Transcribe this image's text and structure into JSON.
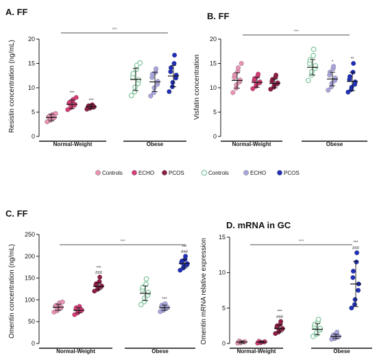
{
  "colors": {
    "controls_nw": "#e893b4",
    "echo_nw": "#d43b75",
    "pcos_nw": "#8e1c45",
    "controls_ob": "#7cc49a",
    "echo_ob": "#a9a6de",
    "pcos_ob": "#1f2fb8"
  },
  "legend": [
    {
      "label": "Controls",
      "color_key": "controls_nw",
      "hollow": false
    },
    {
      "label": "ECHO",
      "color_key": "echo_nw",
      "hollow": false
    },
    {
      "label": "PCOS",
      "color_key": "pcos_nw",
      "hollow": false
    },
    {
      "label": "Controls",
      "color_key": "controls_ob",
      "hollow": true
    },
    {
      "label": "ECHO",
      "color_key": "echo_ob",
      "hollow": false
    },
    {
      "label": "PCOS",
      "color_key": "pcos_ob",
      "hollow": false
    }
  ],
  "chart_data": [
    {
      "type": "scatter",
      "title": "A. FF",
      "ylabel": "Resistin concentration (ng/mL)",
      "ylim": [
        0,
        20
      ],
      "yticks": [
        0,
        5,
        10,
        15,
        20
      ],
      "groups": [
        "Normal-Weight",
        "Obese"
      ],
      "bracket": "°°°",
      "series": [
        {
          "color_key": "controls_nw",
          "mean": 3.9,
          "sd": 0.7,
          "sig": [],
          "points": [
            3.0,
            3.3,
            3.6,
            3.8,
            3.9,
            4.0,
            4.1,
            4.3,
            4.5,
            4.7
          ]
        },
        {
          "color_key": "echo_nw",
          "mean": 6.6,
          "sd": 0.9,
          "sig": [
            "***"
          ],
          "points": [
            5.5,
            5.9,
            6.2,
            6.4,
            6.6,
            6.8,
            7.0,
            7.3,
            7.6,
            8.0
          ]
        },
        {
          "color_key": "pcos_nw",
          "mean": 6.1,
          "sd": 0.4,
          "sig": [
            "***"
          ],
          "points": [
            5.6,
            5.8,
            5.9,
            6.0,
            6.1,
            6.2,
            6.3,
            6.4,
            6.5
          ]
        },
        {
          "color_key": "controls_ob",
          "mean": 11.7,
          "sd": 2.3,
          "sig": [],
          "hollow": true,
          "points": [
            8.4,
            9.2,
            10.1,
            10.9,
            11.6,
            12.2,
            12.9,
            13.8,
            14.6,
            15.1
          ]
        },
        {
          "color_key": "echo_ob",
          "mean": 11.2,
          "sd": 2.0,
          "sig": [],
          "points": [
            8.3,
            9.0,
            10.0,
            10.7,
            11.3,
            12.1,
            12.8,
            13.2,
            13.9
          ]
        },
        {
          "color_key": "pcos_ob",
          "mean": 12.4,
          "sd": 2.2,
          "sig": [],
          "points": [
            9.2,
            10.2,
            11.1,
            12.0,
            12.6,
            13.3,
            14.1,
            15.0,
            16.7
          ]
        }
      ]
    },
    {
      "type": "scatter",
      "title": "B. FF",
      "ylabel": "Visfatin concentration",
      "ylim": [
        0,
        20
      ],
      "yticks": [
        0,
        5,
        10,
        15,
        20
      ],
      "groups": [
        "Normal-Weight",
        "Obese"
      ],
      "bracket": "°°°",
      "series": [
        {
          "color_key": "controls_nw",
          "mean": 11.5,
          "sd": 1.6,
          "sig": [],
          "points": [
            9.0,
            9.9,
            10.6,
            11.2,
            11.6,
            12.1,
            12.7,
            13.4,
            14.1,
            15.0
          ]
        },
        {
          "color_key": "echo_nw",
          "mean": 11.1,
          "sd": 1.0,
          "sig": [],
          "points": [
            9.8,
            10.3,
            10.7,
            11.0,
            11.2,
            11.5,
            11.9,
            12.4,
            12.8
          ]
        },
        {
          "color_key": "pcos_nw",
          "mean": 10.9,
          "sd": 0.9,
          "sig": [],
          "points": [
            9.7,
            10.1,
            10.5,
            10.8,
            11.0,
            11.3,
            11.7,
            12.2,
            12.6
          ]
        },
        {
          "color_key": "controls_ob",
          "mean": 14.2,
          "sd": 1.6,
          "sig": [],
          "hollow": true,
          "points": [
            11.5,
            12.6,
            13.3,
            14.0,
            14.5,
            15.0,
            15.7,
            16.6,
            17.9
          ]
        },
        {
          "color_key": "echo_ob",
          "mean": 11.8,
          "sd": 1.4,
          "sig": [
            "*"
          ],
          "points": [
            9.5,
            10.2,
            10.9,
            11.5,
            12.0,
            12.6,
            13.2,
            13.9,
            14.4
          ]
        },
        {
          "color_key": "pcos_ob",
          "mean": 11.3,
          "sd": 1.9,
          "sig": [
            "**"
          ],
          "points": [
            9.1,
            9.6,
            10.1,
            10.7,
            11.2,
            11.7,
            12.3,
            13.2,
            15.0
          ]
        }
      ]
    },
    {
      "type": "scatter",
      "title": "C. FF",
      "ylabel": "Omentin concentration (ng/mL)",
      "ylim": [
        0,
        250
      ],
      "yticks": [
        0,
        50,
        100,
        150,
        200,
        250
      ],
      "groups": [
        "Normal-Weight",
        "Obese"
      ],
      "bracket": "°°°",
      "series": [
        {
          "color_key": "controls_nw",
          "mean": 83,
          "sd": 7,
          "sig": [],
          "points": [
            72,
            75,
            78,
            81,
            83,
            85,
            87,
            90,
            93,
            95
          ]
        },
        {
          "color_key": "echo_nw",
          "mean": 76,
          "sd": 6,
          "sig": [],
          "points": [
            66,
            70,
            73,
            75,
            77,
            79,
            82,
            85
          ]
        },
        {
          "color_key": "pcos_nw",
          "mean": 131,
          "sd": 8,
          "sig": [
            "***",
            "###"
          ],
          "points": [
            120,
            124,
            127,
            130,
            132,
            134,
            137,
            142,
            152
          ]
        },
        {
          "color_key": "controls_ob",
          "mean": 115,
          "sd": 17,
          "sig": [],
          "hollow": true,
          "points": [
            89,
            96,
            104,
            111,
            117,
            123,
            129,
            136,
            148
          ]
        },
        {
          "color_key": "echo_ob",
          "mean": 82,
          "sd": 6,
          "sig": [
            "***"
          ],
          "points": [
            73,
            76,
            79,
            81,
            83,
            85,
            88,
            91
          ]
        },
        {
          "color_key": "pcos_ob",
          "mean": 183,
          "sd": 10,
          "sig": [
            "***",
            "###"
          ],
          "points": [
            168,
            173,
            177,
            180,
            183,
            186,
            189,
            193,
            200
          ]
        }
      ]
    },
    {
      "type": "scatter",
      "title": "D. mRNA in GC",
      "ylabel": "Omentin mRNA relative expression",
      "ylim": [
        0,
        15
      ],
      "yticks": [
        0,
        5,
        10,
        15
      ],
      "groups": [
        "Normal-Weight",
        "Obese"
      ],
      "bracket": "°°°",
      "series": [
        {
          "color_key": "controls_nw",
          "mean": 0.2,
          "sd": 0.15,
          "sig": [],
          "points": [
            0.05,
            0.1,
            0.15,
            0.2,
            0.25,
            0.3,
            0.35
          ]
        },
        {
          "color_key": "echo_nw",
          "mean": 0.2,
          "sd": 0.12,
          "sig": [],
          "points": [
            0.05,
            0.1,
            0.15,
            0.2,
            0.25,
            0.3
          ]
        },
        {
          "color_key": "pcos_nw",
          "mean": 2.1,
          "sd": 0.5,
          "sig": [
            "***",
            "###"
          ],
          "points": [
            1.4,
            1.6,
            1.8,
            2.0,
            2.1,
            2.3,
            2.5,
            2.7,
            3.1
          ]
        },
        {
          "color_key": "controls_ob",
          "mean": 2.0,
          "sd": 0.8,
          "sig": [],
          "hollow": true,
          "points": [
            1.0,
            1.3,
            1.6,
            1.9,
            2.1,
            2.4,
            2.7,
            3.1,
            3.4
          ]
        },
        {
          "color_key": "echo_ob",
          "mean": 1.0,
          "sd": 0.3,
          "sig": [],
          "points": [
            0.6,
            0.7,
            0.8,
            0.9,
            1.0,
            1.1,
            1.2,
            1.4,
            1.6
          ]
        },
        {
          "color_key": "pcos_ob",
          "mean": 8.4,
          "sd": 3.2,
          "sig": [
            "***",
            "###"
          ],
          "points": [
            5.0,
            5.5,
            6.2,
            7.5,
            8.4,
            9.3,
            10.2,
            11.5,
            12.8
          ]
        }
      ]
    }
  ]
}
